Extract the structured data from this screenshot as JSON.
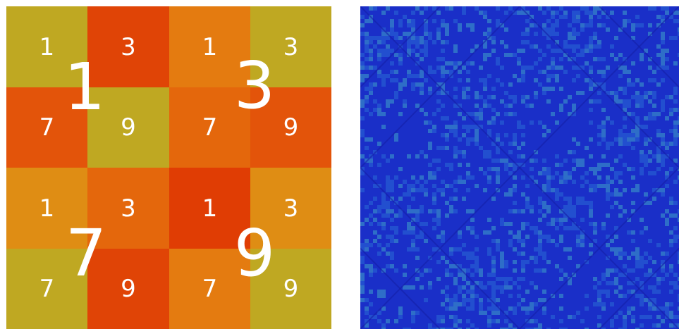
{
  "left_diagram": {
    "cells": [
      {
        "label": "1",
        "color": "#bfa822"
      },
      {
        "label": "3",
        "color": "#e04406"
      },
      {
        "label": "1",
        "color": "#e47b10"
      },
      {
        "label": "3",
        "color": "#bfa822"
      },
      {
        "label": "7",
        "color": "#e3540a"
      },
      {
        "label": "9",
        "color": "#bfa822"
      },
      {
        "label": "7",
        "color": "#e4670c"
      },
      {
        "label": "9",
        "color": "#e3540a"
      },
      {
        "label": "1",
        "color": "#df8d14"
      },
      {
        "label": "3",
        "color": "#e4670c"
      },
      {
        "label": "1",
        "color": "#e03d04"
      },
      {
        "label": "3",
        "color": "#df8d14"
      },
      {
        "label": "7",
        "color": "#bfa822"
      },
      {
        "label": "9",
        "color": "#e04406"
      },
      {
        "label": "7",
        "color": "#e47b10"
      },
      {
        "label": "9",
        "color": "#bfa822"
      }
    ],
    "big_labels": [
      "1",
      "3",
      "7",
      "9"
    ]
  },
  "right_panel": {
    "colors": [
      "#1a2fc8",
      "#2a6ad6",
      "#3fa3c8",
      "#1520a8"
    ]
  }
}
